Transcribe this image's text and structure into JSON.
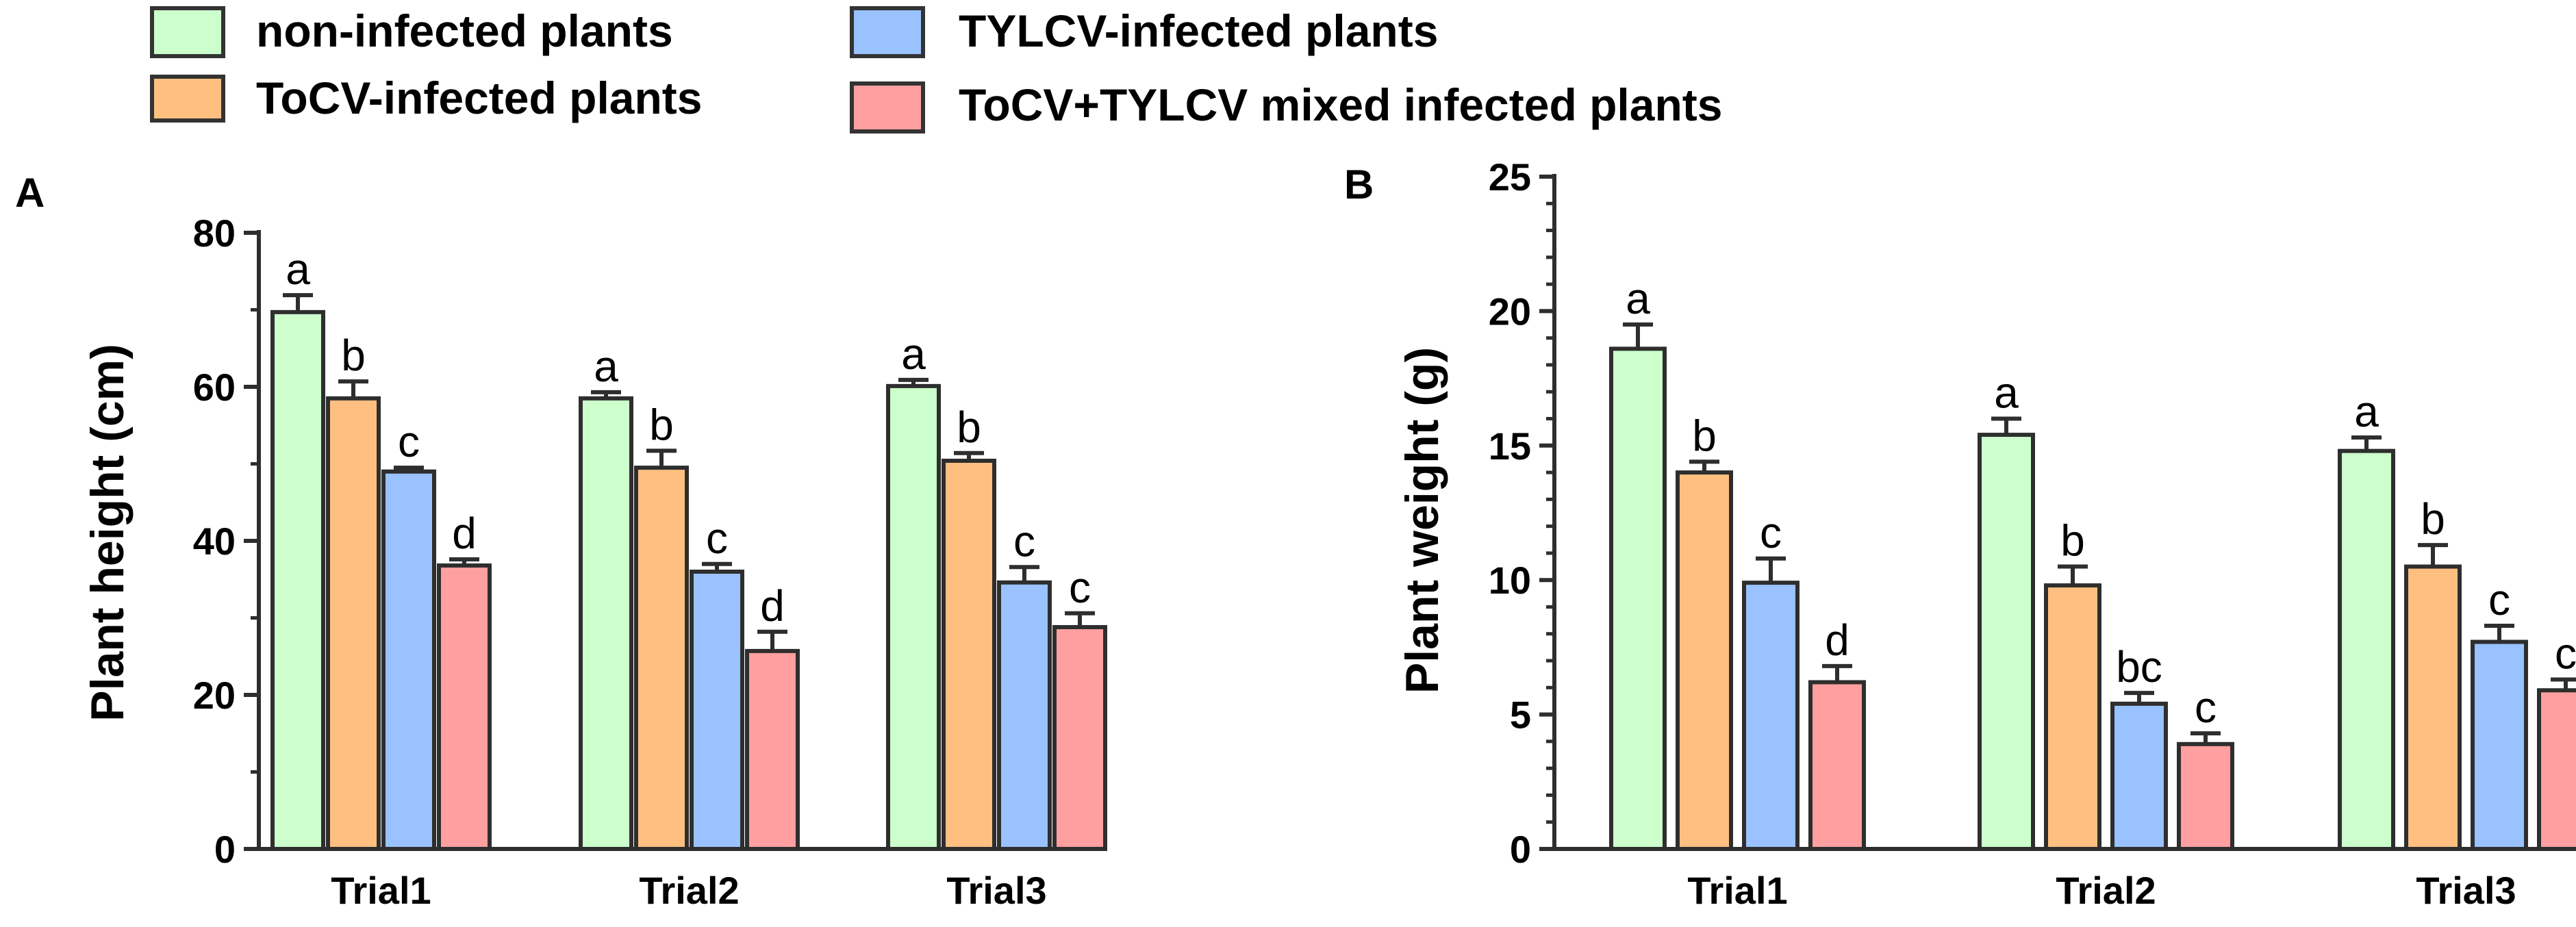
{
  "legend": [
    {
      "label": "non-infected plants",
      "color": "#ccffcc"
    },
    {
      "label": "ToCV-infected plants",
      "color": "#ffbf80"
    },
    {
      "label": "TYLCV-infected plants",
      "color": "#99c2ff"
    },
    {
      "label": "ToCV+TYLCV mixed infected plants",
      "color": "#ff9f9f"
    }
  ],
  "chart_data": [
    {
      "panel": "A",
      "type": "bar",
      "ylabel": "Plant height (cm)",
      "xlabel": "",
      "ylim": [
        0,
        80
      ],
      "yticks": [
        "0",
        "20",
        "40",
        "60",
        "80"
      ],
      "categories": [
        "Trial1",
        "Trial2",
        "Trial3"
      ],
      "series": [
        {
          "name": "non-infected plants",
          "values": [
            69.7,
            58.5,
            60.1
          ],
          "errors": [
            2.2,
            0.8,
            0.8
          ],
          "letters": [
            "a",
            "a",
            "a"
          ]
        },
        {
          "name": "ToCV-infected plants",
          "values": [
            58.5,
            49.5,
            50.4
          ],
          "errors": [
            2.2,
            2.2,
            1.0
          ],
          "letters": [
            "b",
            "b",
            "b"
          ]
        },
        {
          "name": "TYLCV-infected plants",
          "values": [
            49.0,
            36.0,
            34.6
          ],
          "errors": [
            0.5,
            1.0,
            2.0
          ],
          "letters": [
            "c",
            "c",
            "c"
          ]
        },
        {
          "name": "ToCV+TYLCV mixed infected plants",
          "values": [
            36.8,
            25.7,
            28.8
          ],
          "errors": [
            0.8,
            2.5,
            1.8
          ],
          "letters": [
            "d",
            "d",
            "c"
          ]
        }
      ]
    },
    {
      "panel": "B",
      "type": "bar",
      "ylabel": "Plant weight (g)",
      "xlabel": "",
      "ylim": [
        0,
        25
      ],
      "yticks": [
        "0",
        "5",
        "10",
        "15",
        "20",
        "25"
      ],
      "categories": [
        "Trial1",
        "Trial2",
        "Trial3"
      ],
      "series": [
        {
          "name": "non-infected plants",
          "values": [
            18.6,
            15.4,
            14.8
          ],
          "errors": [
            0.9,
            0.6,
            0.5
          ],
          "letters": [
            "a",
            "a",
            "a"
          ]
        },
        {
          "name": "ToCV-infected plants",
          "values": [
            14.0,
            9.8,
            10.5
          ],
          "errors": [
            0.4,
            0.7,
            0.8
          ],
          "letters": [
            "b",
            "b",
            "b"
          ]
        },
        {
          "name": "TYLCV-infected plants",
          "values": [
            9.9,
            5.4,
            7.7
          ],
          "errors": [
            0.9,
            0.4,
            0.6
          ],
          "letters": [
            "c",
            "bc",
            "c"
          ]
        },
        {
          "name": "ToCV+TYLCV mixed infected plants",
          "values": [
            6.2,
            3.9,
            5.9
          ],
          "errors": [
            0.6,
            0.4,
            0.4
          ],
          "letters": [
            "d",
            "c",
            "c"
          ]
        }
      ]
    }
  ]
}
